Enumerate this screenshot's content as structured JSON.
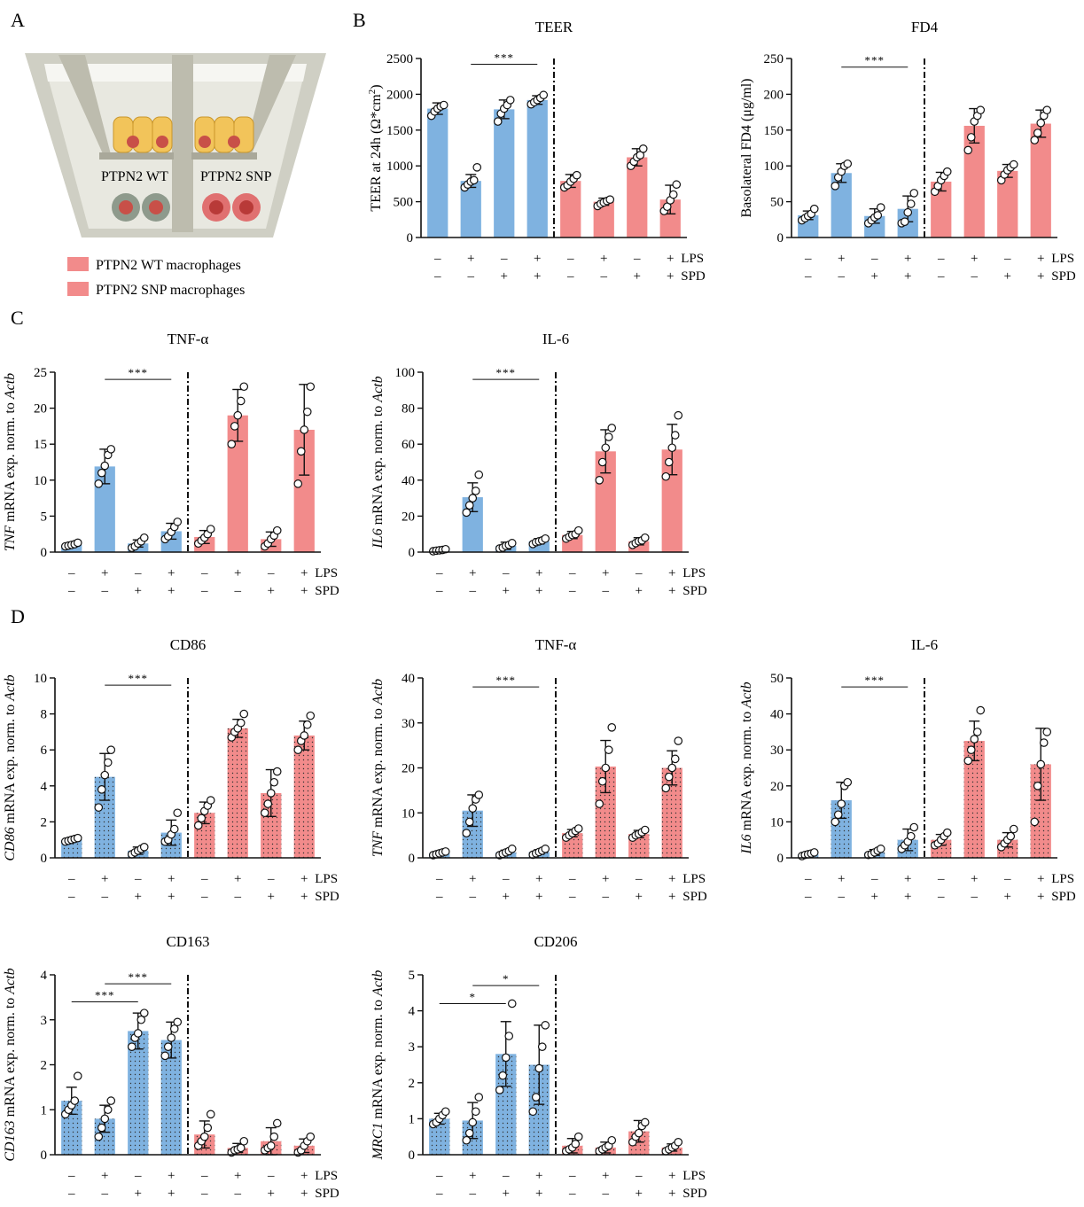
{
  "panel_letters": [
    "A",
    "B",
    "C",
    "D"
  ],
  "schematic": {
    "wt_label": "PTPN2 WT",
    "snp_label": "PTPN2 SNP",
    "legend": [
      {
        "label": "PTPN2 WT macrophages",
        "color": "#f28b8b"
      },
      {
        "label": "PTPN2 SNP macrophages",
        "color": "#f28b8b"
      }
    ]
  },
  "colors": {
    "wt": "#7fb2e0",
    "snp": "#f28b8b",
    "errorbar": "#111111"
  },
  "row_labels": {
    "lps": "LPS",
    "spd": "SPD"
  },
  "signs": {
    "lps": [
      "–",
      "+",
      "–",
      "+",
      "–",
      "+",
      "–",
      "+"
    ],
    "spd": [
      "–",
      "–",
      "+",
      "+",
      "–",
      "–",
      "+",
      "+"
    ]
  },
  "chart_data": [
    {
      "id": "teer",
      "type": "bar",
      "title": "TEER",
      "ylabel_parts": [
        {
          "t": "TEER at 24h (Ω*cm"
        },
        {
          "t": "2",
          "sup": true
        },
        {
          "t": ")"
        }
      ],
      "ylim": [
        0,
        2500
      ],
      "yticks": [
        0,
        500,
        1000,
        1500,
        2000,
        2500
      ],
      "dotted": false,
      "categories": [
        "WT –/–",
        "WT +/–",
        "WT –/+",
        "WT +/+",
        "SNP –/–",
        "SNP +/–",
        "SNP –/+",
        "SNP +/+"
      ],
      "values": [
        1800,
        790,
        1790,
        1920,
        790,
        500,
        1120,
        530
      ],
      "errors": [
        80,
        90,
        130,
        60,
        90,
        50,
        120,
        200
      ],
      "points": [
        [
          1700,
          1760,
          1800,
          1830,
          1850
        ],
        [
          700,
          740,
          780,
          800,
          980
        ],
        [
          1620,
          1730,
          1800,
          1850,
          1920
        ],
        [
          1860,
          1890,
          1920,
          1950,
          1990
        ],
        [
          700,
          730,
          780,
          820,
          870
        ],
        [
          440,
          470,
          490,
          510,
          530
        ],
        [
          1000,
          1060,
          1120,
          1150,
          1240
        ],
        [
          370,
          430,
          520,
          600,
          740
        ]
      ],
      "sig": [
        {
          "from": 1,
          "to": 3,
          "text": "***",
          "y": 2420
        }
      ],
      "separator_after": 3
    },
    {
      "id": "fd4",
      "type": "bar",
      "title": "FD4",
      "ylabel_parts": [
        {
          "t": "Basolateral FD4 (μg/ml)"
        }
      ],
      "ylim": [
        0,
        250
      ],
      "yticks": [
        0,
        50,
        100,
        150,
        200,
        250
      ],
      "dotted": false,
      "categories": [
        "WT –/–",
        "WT +/–",
        "WT –/+",
        "WT +/+",
        "SNP –/–",
        "SNP +/–",
        "SNP –/+",
        "SNP +/+"
      ],
      "values": [
        31,
        90,
        30,
        40,
        78,
        156,
        93,
        159
      ],
      "errors": [
        6,
        13,
        10,
        18,
        13,
        24,
        9,
        19
      ],
      "points": [
        [
          24,
          27,
          30,
          33,
          40
        ],
        [
          72,
          84,
          92,
          100,
          103
        ],
        [
          20,
          24,
          28,
          31,
          42
        ],
        [
          20,
          22,
          35,
          47,
          62
        ],
        [
          64,
          72,
          80,
          86,
          92
        ],
        [
          122,
          140,
          162,
          170,
          178
        ],
        [
          80,
          88,
          94,
          98,
          102
        ],
        [
          136,
          146,
          160,
          170,
          178
        ]
      ],
      "sig": [
        {
          "from": 1,
          "to": 3,
          "text": "***",
          "y": 238
        }
      ],
      "separator_after": 3
    },
    {
      "id": "tnf_c",
      "type": "bar",
      "title": "TNF-α",
      "ylabel_parts": [
        {
          "t": "TNF",
          "i": true
        },
        {
          "t": " mRNA exp. norm. to "
        },
        {
          "t": "Actb",
          "i": true
        }
      ],
      "ylim": [
        0,
        25
      ],
      "yticks": [
        0,
        5,
        10,
        15,
        20,
        25
      ],
      "dotted": false,
      "categories": [
        "WT –/–",
        "WT +/–",
        "WT –/+",
        "WT +/+",
        "SNP –/–",
        "SNP +/–",
        "SNP –/+",
        "SNP +/+"
      ],
      "values": [
        1.0,
        11.9,
        1.2,
        2.9,
        2.1,
        19.0,
        1.8,
        17.0
      ],
      "errors": [
        0.2,
        2.4,
        0.5,
        1.1,
        0.9,
        3.6,
        1.0,
        6.3
      ],
      "points": [
        [
          0.8,
          0.9,
          1.0,
          1.1,
          1.3
        ],
        [
          9.5,
          11.0,
          12.0,
          13.5,
          14.3
        ],
        [
          0.6,
          0.8,
          1.2,
          1.5,
          2.0
        ],
        [
          1.8,
          2.2,
          2.8,
          3.5,
          4.2
        ],
        [
          1.2,
          1.6,
          2.0,
          2.5,
          3.2
        ],
        [
          15.0,
          17.5,
          19.0,
          21.0,
          23.0
        ],
        [
          0.8,
          1.2,
          1.8,
          2.3,
          3.0
        ],
        [
          9.5,
          14.0,
          17.0,
          19.5,
          23.0
        ]
      ],
      "sig": [
        {
          "from": 1,
          "to": 3,
          "text": "***",
          "y": 24.0
        }
      ],
      "separator_after": 3
    },
    {
      "id": "il6_c",
      "type": "bar",
      "title": "IL-6",
      "ylabel_parts": [
        {
          "t": "IL6",
          "i": true
        },
        {
          "t": " mRNA exp. norm. to "
        },
        {
          "t": "Actb",
          "i": true
        }
      ],
      "ylim": [
        0,
        100
      ],
      "yticks": [
        0,
        20,
        40,
        60,
        80,
        100
      ],
      "dotted": false,
      "categories": [
        "WT –/–",
        "WT +/–",
        "WT –/+",
        "WT +/+",
        "SNP –/–",
        "SNP +/–",
        "SNP –/+",
        "SNP +/+"
      ],
      "values": [
        1.0,
        30.5,
        3.5,
        6.0,
        9.5,
        56.0,
        6.0,
        57.0
      ],
      "errors": [
        0.5,
        8.0,
        2.0,
        1.5,
        2.0,
        12.0,
        2.0,
        14.0
      ],
      "points": [
        [
          0.5,
          0.8,
          1.0,
          1.2,
          1.6
        ],
        [
          22,
          26,
          30,
          34,
          43
        ],
        [
          2,
          2.5,
          3.5,
          4,
          5
        ],
        [
          4.5,
          5.5,
          6,
          6.5,
          7.5
        ],
        [
          7.5,
          8.5,
          9.5,
          10,
          12
        ],
        [
          40,
          50,
          58,
          64,
          69
        ],
        [
          4,
          5,
          6,
          6.5,
          8
        ],
        [
          42,
          50,
          58,
          65,
          76
        ]
      ],
      "sig": [
        {
          "from": 1,
          "to": 3,
          "text": "***",
          "y": 96
        }
      ],
      "separator_after": 3
    },
    {
      "id": "cd86",
      "type": "bar",
      "title": "CD86",
      "ylabel_parts": [
        {
          "t": "CD86",
          "i": true
        },
        {
          "t": " mRNA exp. norm. to "
        },
        {
          "t": "Actb",
          "i": true
        }
      ],
      "ylim": [
        0,
        10
      ],
      "yticks": [
        0,
        2,
        4,
        6,
        8,
        10
      ],
      "dotted": true,
      "categories": [
        "WT –/–",
        "WT +/–",
        "WT –/+",
        "WT +/+",
        "SNP –/–",
        "SNP +/–",
        "SNP –/+",
        "SNP +/+"
      ],
      "values": [
        1.0,
        4.5,
        0.4,
        1.4,
        2.5,
        7.2,
        3.6,
        6.8
      ],
      "errors": [
        0.1,
        1.3,
        0.2,
        0.7,
        0.6,
        0.5,
        1.3,
        0.8
      ],
      "points": [
        [
          0.9,
          0.95,
          1.0,
          1.05,
          1.1
        ],
        [
          2.8,
          3.8,
          4.6,
          5.3,
          6.0
        ],
        [
          0.2,
          0.3,
          0.4,
          0.5,
          0.6
        ],
        [
          0.9,
          1.0,
          1.3,
          1.6,
          2.5
        ],
        [
          1.8,
          2.2,
          2.6,
          2.9,
          3.2
        ],
        [
          6.7,
          7.0,
          7.2,
          7.5,
          8.0
        ],
        [
          2.5,
          3.0,
          3.6,
          4.2,
          4.8
        ],
        [
          6.0,
          6.5,
          6.8,
          7.4,
          7.9
        ]
      ],
      "sig": [
        {
          "from": 1,
          "to": 3,
          "text": "***",
          "y": 9.6
        }
      ],
      "separator_after": 3
    },
    {
      "id": "tnf_d",
      "type": "bar",
      "title": "TNF-α",
      "ylabel_parts": [
        {
          "t": "TNF",
          "i": true
        },
        {
          "t": " mRNA exp. norm. to "
        },
        {
          "t": "Actb",
          "i": true
        }
      ],
      "ylim": [
        0,
        40
      ],
      "yticks": [
        0,
        10,
        20,
        30,
        40
      ],
      "dotted": true,
      "categories": [
        "WT –/–",
        "WT +/–",
        "WT –/+",
        "WT +/+",
        "SNP –/–",
        "SNP +/–",
        "SNP –/+",
        "SNP +/+"
      ],
      "values": [
        1.0,
        10.5,
        1.2,
        1.3,
        5.5,
        20.3,
        5.3,
        20.0
      ],
      "errors": [
        0.3,
        3.5,
        0.5,
        0.5,
        0.8,
        5.8,
        0.8,
        3.8
      ],
      "points": [
        [
          0.6,
          0.8,
          1.0,
          1.2,
          1.4
        ],
        [
          5.5,
          8.0,
          11.0,
          13.0,
          14.0
        ],
        [
          0.6,
          0.9,
          1.2,
          1.5,
          2.0
        ],
        [
          0.7,
          1.0,
          1.3,
          1.6,
          2.0
        ],
        [
          4.5,
          5.0,
          5.5,
          6.0,
          6.5
        ],
        [
          12.0,
          17.0,
          20.0,
          24.0,
          29.0
        ],
        [
          4.5,
          5.0,
          5.3,
          5.7,
          6.2
        ],
        [
          15.5,
          18.0,
          20.0,
          22.0,
          26.0
        ]
      ],
      "sig": [
        {
          "from": 1,
          "to": 3,
          "text": "***",
          "y": 38
        }
      ],
      "separator_after": 3
    },
    {
      "id": "il6_d",
      "type": "bar",
      "title": "IL-6",
      "ylabel_parts": [
        {
          "t": "IL6",
          "i": true
        },
        {
          "t": " mRNA exp. norm. to "
        },
        {
          "t": "Actb",
          "i": true
        }
      ],
      "ylim": [
        0,
        50
      ],
      "yticks": [
        0,
        10,
        20,
        30,
        40,
        50
      ],
      "dotted": true,
      "categories": [
        "WT –/–",
        "WT +/–",
        "WT –/+",
        "WT +/+",
        "SNP –/–",
        "SNP +/–",
        "SNP –/+",
        "SNP +/+"
      ],
      "values": [
        1.0,
        16.0,
        1.5,
        5.0,
        5.0,
        32.5,
        5.0,
        26.0
      ],
      "errors": [
        0.5,
        5.0,
        0.8,
        3.0,
        1.5,
        5.5,
        2.0,
        10.0
      ],
      "points": [
        [
          0.5,
          0.8,
          1.0,
          1.2,
          1.5
        ],
        [
          10.0,
          12.0,
          15.0,
          20.0,
          21.0
        ],
        [
          0.8,
          1.0,
          1.5,
          2.0,
          2.5
        ],
        [
          2.5,
          3.5,
          4.5,
          6.0,
          8.5
        ],
        [
          3.5,
          4.0,
          5.0,
          6.0,
          7.0
        ],
        [
          27.0,
          30.0,
          33.0,
          35.0,
          41.0
        ],
        [
          3.0,
          4.0,
          5.0,
          6.0,
          8.0
        ],
        [
          10.0,
          20.0,
          26.0,
          32.0,
          35.0
        ]
      ],
      "sig": [
        {
          "from": 1,
          "to": 3,
          "text": "***",
          "y": 47.5
        }
      ],
      "separator_after": 3
    },
    {
      "id": "cd163",
      "type": "bar",
      "title": "CD163",
      "ylabel_parts": [
        {
          "t": "CD163",
          "i": true
        },
        {
          "t": " mRNA exp. norm. to "
        },
        {
          "t": "Actb",
          "i": true
        }
      ],
      "ylim": [
        0,
        4
      ],
      "yticks": [
        0,
        1,
        2,
        3,
        4
      ],
      "dotted": true,
      "categories": [
        "WT –/–",
        "WT +/–",
        "WT –/+",
        "WT +/+",
        "SNP –/–",
        "SNP +/–",
        "SNP –/+",
        "SNP +/+"
      ],
      "values": [
        1.2,
        0.8,
        2.75,
        2.55,
        0.45,
        0.15,
        0.3,
        0.2
      ],
      "errors": [
        0.3,
        0.3,
        0.4,
        0.4,
        0.3,
        0.1,
        0.3,
        0.15
      ],
      "points": [
        [
          0.9,
          1.0,
          1.1,
          1.2,
          1.75
        ],
        [
          0.4,
          0.6,
          0.8,
          1.0,
          1.2
        ],
        [
          2.4,
          2.6,
          2.7,
          3.0,
          3.15
        ],
        [
          2.2,
          2.4,
          2.6,
          2.8,
          2.95
        ],
        [
          0.2,
          0.3,
          0.4,
          0.6,
          0.9
        ],
        [
          0.05,
          0.1,
          0.12,
          0.15,
          0.3
        ],
        [
          0.1,
          0.15,
          0.2,
          0.4,
          0.7
        ],
        [
          0.05,
          0.1,
          0.2,
          0.3,
          0.4
        ]
      ],
      "sig": [
        {
          "from": 0,
          "to": 2,
          "text": "***",
          "y": 3.4
        },
        {
          "from": 1,
          "to": 3,
          "text": "***",
          "y": 3.8
        }
      ],
      "separator_after": 3
    },
    {
      "id": "cd206",
      "type": "bar",
      "title": "CD206",
      "ylabel_parts": [
        {
          "t": "MRC1",
          "i": true
        },
        {
          "t": " mRNA exp. norm. to "
        },
        {
          "t": "Actb",
          "i": true
        }
      ],
      "ylim": [
        0,
        5
      ],
      "yticks": [
        0,
        1,
        2,
        3,
        4,
        5
      ],
      "dotted": true,
      "categories": [
        "WT –/–",
        "WT +/–",
        "WT –/+",
        "WT +/+",
        "SNP –/–",
        "SNP +/–",
        "SNP –/+",
        "SNP +/+"
      ],
      "values": [
        1.0,
        0.95,
        2.8,
        2.5,
        0.25,
        0.2,
        0.65,
        0.2
      ],
      "errors": [
        0.15,
        0.5,
        0.9,
        1.1,
        0.2,
        0.15,
        0.3,
        0.1
      ],
      "points": [
        [
          0.85,
          0.9,
          1.0,
          1.1,
          1.2
        ],
        [
          0.4,
          0.6,
          0.9,
          1.2,
          1.6
        ],
        [
          1.8,
          2.2,
          2.7,
          3.3,
          4.2
        ],
        [
          1.2,
          1.6,
          2.4,
          3.0,
          3.6
        ],
        [
          0.1,
          0.15,
          0.2,
          0.3,
          0.5
        ],
        [
          0.1,
          0.15,
          0.2,
          0.25,
          0.4
        ],
        [
          0.35,
          0.5,
          0.6,
          0.8,
          0.9
        ],
        [
          0.1,
          0.15,
          0.2,
          0.25,
          0.35
        ]
      ],
      "sig": [
        {
          "from": 0,
          "to": 2,
          "text": "*",
          "y": 4.2
        },
        {
          "from": 1,
          "to": 3,
          "text": "*",
          "y": 4.7
        }
      ],
      "separator_after": 3
    }
  ]
}
